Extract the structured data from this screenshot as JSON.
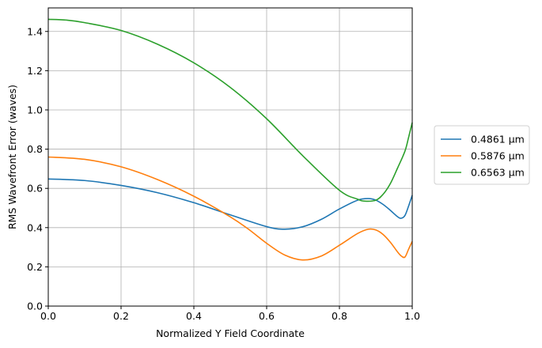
{
  "chart_data": {
    "type": "line",
    "title": "",
    "xlabel": "Normalized Y Field Coordinate",
    "ylabel": "RMS Wavefront Error (waves)",
    "xlim": [
      0.0,
      1.0
    ],
    "ylim": [
      0.0,
      1.52
    ],
    "xticks": [
      0.0,
      0.2,
      0.4,
      0.6,
      0.8,
      1.0
    ],
    "xtick_labels": [
      "0.0",
      "0.2",
      "0.4",
      "0.6",
      "0.8",
      "1.0"
    ],
    "yticks": [
      0.0,
      0.2,
      0.4,
      0.6,
      0.8,
      1.0,
      1.2,
      1.4
    ],
    "ytick_labels": [
      "0.0",
      "0.2",
      "0.4",
      "0.6",
      "0.8",
      "1.0",
      "1.2",
      "1.4"
    ],
    "grid": true,
    "legend_position": "outside right",
    "series": [
      {
        "name": "0.4861 µm",
        "color": "#1f77b4",
        "x": [
          0.0,
          0.1,
          0.2,
          0.3,
          0.4,
          0.5,
          0.6,
          0.65,
          0.7,
          0.75,
          0.8,
          0.85,
          0.88,
          0.9,
          0.92,
          0.94,
          0.96,
          0.97,
          0.98,
          0.99,
          1.0
        ],
        "y": [
          0.648,
          0.64,
          0.615,
          0.578,
          0.527,
          0.465,
          0.405,
          0.392,
          0.405,
          0.442,
          0.495,
          0.54,
          0.548,
          0.54,
          0.518,
          0.488,
          0.455,
          0.448,
          0.462,
          0.51,
          0.565
        ]
      },
      {
        "name": "0.5876 µm",
        "color": "#ff7f0e",
        "x": [
          0.0,
          0.1,
          0.2,
          0.3,
          0.4,
          0.5,
          0.55,
          0.6,
          0.65,
          0.7,
          0.75,
          0.8,
          0.85,
          0.88,
          0.9,
          0.92,
          0.94,
          0.96,
          0.97,
          0.98,
          0.99,
          1.0
        ],
        "y": [
          0.76,
          0.748,
          0.71,
          0.645,
          0.56,
          0.455,
          0.392,
          0.32,
          0.26,
          0.235,
          0.255,
          0.31,
          0.37,
          0.392,
          0.388,
          0.365,
          0.325,
          0.275,
          0.255,
          0.25,
          0.29,
          0.33
        ]
      },
      {
        "name": "0.6563 µm",
        "color": "#2ca02c",
        "x": [
          0.0,
          0.05,
          0.1,
          0.2,
          0.3,
          0.4,
          0.5,
          0.6,
          0.7,
          0.8,
          0.85,
          0.87,
          0.9,
          0.92,
          0.94,
          0.96,
          0.98,
          0.99,
          1.0
        ],
        "y": [
          1.462,
          1.458,
          1.445,
          1.405,
          1.335,
          1.24,
          1.115,
          0.955,
          0.765,
          0.59,
          0.545,
          0.535,
          0.54,
          0.57,
          0.625,
          0.705,
          0.79,
          0.86,
          0.935
        ]
      }
    ]
  }
}
